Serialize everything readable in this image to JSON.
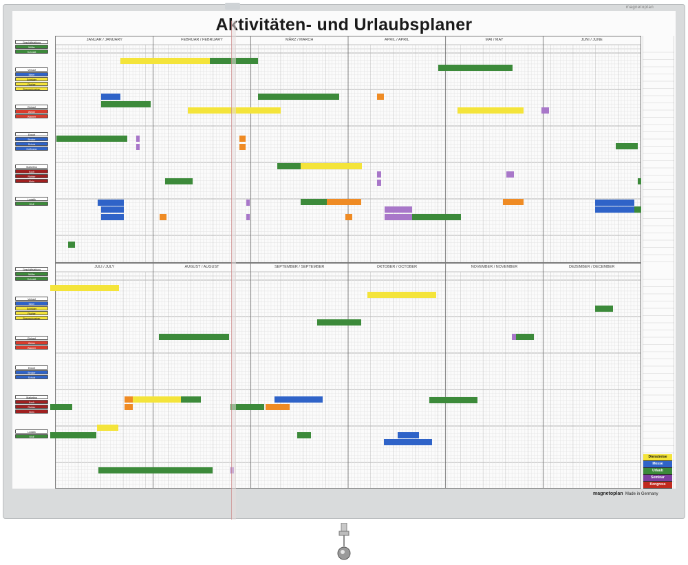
{
  "title": "Aktivitäten- und Urlaubsplaner",
  "brand_tag": "magnetoplan",
  "footer": {
    "brand": "magnetoplan",
    "made_in": "Made in Germany"
  },
  "colors": {
    "yellow": "#f4e43a",
    "green": "#3c8a3a",
    "blue": "#2f63c8",
    "red": "#d83b2c",
    "orange": "#ef8b24",
    "purple": "#a877c9",
    "frame": "#d9dbdc"
  },
  "top_half": {
    "months": [
      "JANUAR / JANUARY",
      "FEBRUAR / FEBRUARY",
      "MÄRZ / MARCH",
      "APRIL / APRIL",
      "MAI / MAY",
      "JUNI / JUNE"
    ],
    "labels": [
      {
        "text": "Geschäftsleitung",
        "color": "#ffffff"
      },
      {
        "text": "Müller",
        "color": "#3c8a3a"
      },
      {
        "text": "Schmidt",
        "color": "#3c8a3a"
      },
      {
        "text": "Verkauf",
        "color": "#ffffff"
      },
      {
        "text": "Meier",
        "color": "#2f63c8"
      },
      {
        "text": "Schröder",
        "color": "#f4e43a"
      },
      {
        "text": "Fischer",
        "color": "#f4e43a"
      },
      {
        "text": "Braunschweiger",
        "color": "#f4e43a"
      },
      {
        "text": "Einkauf",
        "color": "#ffffff"
      },
      {
        "text": "Weber",
        "color": "#d83b2c"
      },
      {
        "text": "Wagner",
        "color": "#d83b2c"
      },
      {
        "text": "Export",
        "color": "#ffffff"
      },
      {
        "text": "Becker",
        "color": "#2f63c8"
      },
      {
        "text": "Schulz",
        "color": "#2f63c8"
      },
      {
        "text": "Hoffmann",
        "color": "#2f63c8"
      },
      {
        "text": "Marketing",
        "color": "#ffffff"
      },
      {
        "text": "Koch",
        "color": "#a02020"
      },
      {
        "text": "Richter",
        "color": "#a02020"
      },
      {
        "text": "Klein",
        "color": "#a02020"
      },
      {
        "text": "Logistik",
        "color": "#ffffff"
      },
      {
        "text": "Wolf",
        "color": "#3c8a3a"
      }
    ]
  },
  "bottom_half": {
    "months": [
      "JULI / JULY",
      "AUGUST / AUGUST",
      "SEPTEMBER / SEPTEMBER",
      "OKTOBER / OCTOBER",
      "NOVEMBER / NOVEMBER",
      "DEZEMBER / DECEMBER"
    ],
    "labels": [
      {
        "text": "Geschäftsleitung",
        "color": "#ffffff"
      },
      {
        "text": "Müller",
        "color": "#3c8a3a"
      },
      {
        "text": "Schmidt",
        "color": "#3c8a3a"
      },
      {
        "text": "Verkauf",
        "color": "#ffffff"
      },
      {
        "text": "Meier",
        "color": "#2f63c8"
      },
      {
        "text": "Schröder",
        "color": "#f4e43a"
      },
      {
        "text": "Fischer",
        "color": "#f4e43a"
      },
      {
        "text": "Braunschweiger",
        "color": "#f4e43a"
      },
      {
        "text": "Einkauf",
        "color": "#ffffff"
      },
      {
        "text": "Weber",
        "color": "#d83b2c"
      },
      {
        "text": "Wagner",
        "color": "#d83b2c"
      },
      {
        "text": "Export",
        "color": "#ffffff"
      },
      {
        "text": "Becker",
        "color": "#2f63c8"
      },
      {
        "text": "Schulz",
        "color": "#2f63c8"
      },
      {
        "text": "Marketing",
        "color": "#ffffff"
      },
      {
        "text": "Koch",
        "color": "#a02020"
      },
      {
        "text": "Richter",
        "color": "#a02020"
      },
      {
        "text": "Klein",
        "color": "#a02020"
      },
      {
        "text": "Logistik",
        "color": "#ffffff"
      },
      {
        "text": "Wolf",
        "color": "#3c8a3a"
      }
    ]
  },
  "legend": [
    {
      "label": "Dienstreise",
      "color": "#f4e43a",
      "text_color": "#111"
    },
    {
      "label": "Messe",
      "color": "#2f63c8",
      "text_color": "#fff"
    },
    {
      "label": "Urlaub",
      "color": "#3c8a3a",
      "text_color": "#fff"
    },
    {
      "label": "Seminar",
      "color": "#7d3ea0",
      "text_color": "#fff"
    },
    {
      "label": "Kongress",
      "color": "#c12a1e",
      "text_color": "#fff"
    }
  ]
}
